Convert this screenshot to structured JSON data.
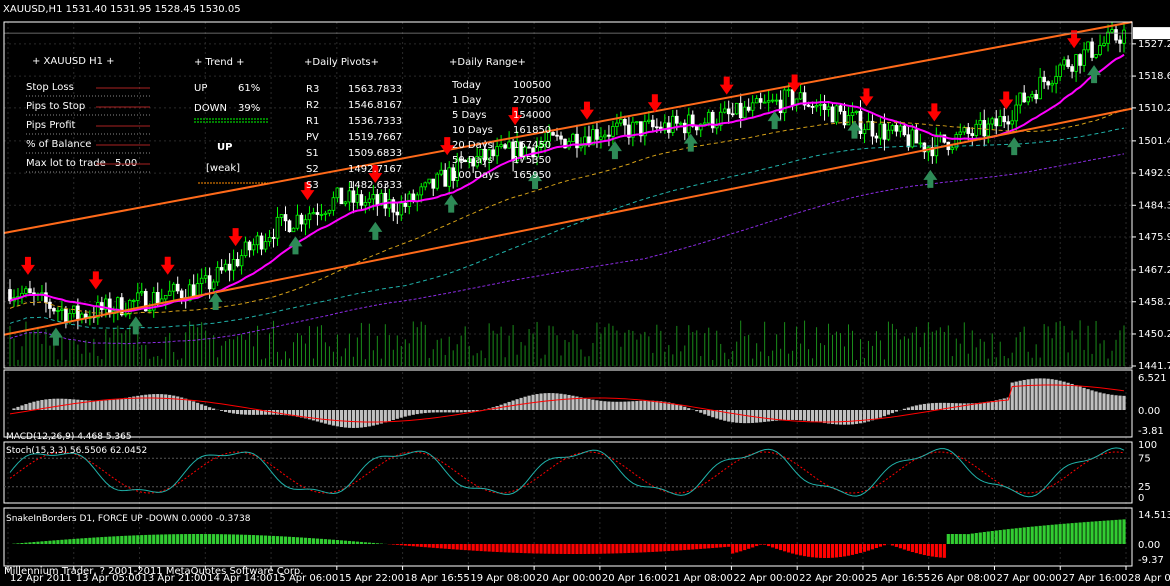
{
  "header": {
    "symbol_line": "XAUUSD,H1  1531.40 1531.95 1528.45 1530.05"
  },
  "price_axis": {
    "current_price": "1530.05",
    "ticks": [
      "1527.20",
      "1518.65",
      "1510.20",
      "1501.45",
      "1492.90",
      "1484.35",
      "1475.95",
      "1467.20",
      "1458.75",
      "1450.20",
      "1441.70"
    ]
  },
  "time_axis": {
    "ticks": [
      "12 Apr 2011",
      "13 Apr 05:00",
      "13 Apr 21:00",
      "14 Apr 14:00",
      "15 Apr 06:00",
      "15 Apr 22:00",
      "18 Apr 16:55",
      "19 Apr 08:00",
      "20 Apr 00:00",
      "20 Apr 16:00",
      "21 Apr 08:00",
      "22 Apr 00:00",
      "22 Apr 20:00",
      "25 Apr 16:55",
      "26 Apr 08:00",
      "27 Apr 00:00",
      "27 Apr 16:00",
      "28 Apr 08:00"
    ]
  },
  "info_panel": {
    "symbol": "XAUUSD  H1",
    "rows": [
      {
        "label": "Stop Loss",
        "value": ""
      },
      {
        "label": "Pips to Stop",
        "value": ""
      },
      {
        "label": "Pips Profit",
        "value": ""
      },
      {
        "label": "% of Balance",
        "value": ""
      },
      {
        "label": "Max lot to trade",
        "value": "5.00"
      }
    ]
  },
  "trend_panel": {
    "title": "Trend",
    "up_label": "UP",
    "up_pct": "61%",
    "down_label": "DOWN",
    "down_pct": "39%",
    "big_signal": "UP",
    "strength": "[weak]"
  },
  "pivots_panel": {
    "title": "Daily Pivots",
    "rows": [
      {
        "label": "R3",
        "value": "1563.7833"
      },
      {
        "label": "R2",
        "value": "1546.8167"
      },
      {
        "label": "R1",
        "value": "1536.7333"
      },
      {
        "label": "PV",
        "value": "1519.7667"
      },
      {
        "label": "S1",
        "value": "1509.6833"
      },
      {
        "label": "S2",
        "value": "1492.7167"
      },
      {
        "label": "S3",
        "value": "1482.6333"
      }
    ]
  },
  "range_panel": {
    "title": "Daily Range",
    "rows": [
      {
        "label": "Today",
        "value": "100500"
      },
      {
        "label": "1 Day",
        "value": "270500"
      },
      {
        "label": "5 Days",
        "value": "154000"
      },
      {
        "label": "10 Days",
        "value": "161850"
      },
      {
        "label": "20 Days",
        "value": "167450"
      },
      {
        "label": "50 Days",
        "value": "175350"
      },
      {
        "label": "100 Days",
        "value": "165950"
      }
    ]
  },
  "macd": {
    "title": "MACD(12,26,9) 4.468 5.365",
    "ticks": [
      "6.521",
      "0.00",
      "-3.81"
    ]
  },
  "stoch": {
    "title": "Stoch(15,3,3) 56.5506 62.0452",
    "ticks": [
      "100",
      "75",
      "25",
      "0"
    ]
  },
  "snake": {
    "title": "SnakeInBorders D1, FORCE UP -DOWN  0.0000 -0.3738",
    "ticks": [
      "14.5131",
      "0.00",
      "-9.37"
    ]
  },
  "copyright": "Millennium Trader, ? 2001-2011 MetaQuotes Software Corp.",
  "colors": {
    "background": "#000000",
    "bull_candle": "#00ff00",
    "bear_candle": "#ffffff",
    "ma_fast": "#ff00ff",
    "channel": "#ff6a1a",
    "down_arrow": "#ff0000",
    "up_arrow": "#2e8b57",
    "macd_hist": "#c0c0c0",
    "macd_signal": "#ff0000",
    "stoch_main": "#20b2aa",
    "stoch_signal": "#ff0000",
    "snake_up": "#32cd32",
    "snake_down": "#ff0000"
  },
  "chart_data": [
    {
      "type": "candlestick",
      "title": "XAUUSD,H1",
      "ylim": [
        1441.7,
        1533.0
      ],
      "x_range": [
        "12 Apr 2011",
        "28 Apr 08:00"
      ],
      "approx_close_path": [
        {
          "x": "12 Apr 2011",
          "y": 1462
        },
        {
          "x": "13 Apr 05:00",
          "y": 1455
        },
        {
          "x": "13 Apr 21:00",
          "y": 1459
        },
        {
          "x": "14 Apr 14:00",
          "y": 1463
        },
        {
          "x": "15 Apr 06:00",
          "y": 1478
        },
        {
          "x": "15 Apr 22:00",
          "y": 1486
        },
        {
          "x": "18 Apr 16:55",
          "y": 1484
        },
        {
          "x": "19 Apr 08:00",
          "y": 1496
        },
        {
          "x": "20 Apr 00:00",
          "y": 1500
        },
        {
          "x": "20 Apr 16:00",
          "y": 1504
        },
        {
          "x": "21 Apr 08:00",
          "y": 1505
        },
        {
          "x": "22 Apr 00:00",
          "y": 1508
        },
        {
          "x": "22 Apr 20:00",
          "y": 1513
        },
        {
          "x": "25 Apr 16:55",
          "y": 1506
        },
        {
          "x": "26 Apr 08:00",
          "y": 1500
        },
        {
          "x": "27 Apr 00:00",
          "y": 1505
        },
        {
          "x": "27 Apr 16:00",
          "y": 1521
        },
        {
          "x": "28 Apr 08:00",
          "y": 1530
        }
      ],
      "down_arrow_count": 16,
      "up_arrow_count": 14
    },
    {
      "type": "bar",
      "title": "MACD(12,26,9) 4.468 5.365",
      "ylim": [
        -3.81,
        6.521
      ]
    },
    {
      "type": "line",
      "title": "Stoch(15,3,3) 56.5506 62.0452",
      "ylim": [
        0,
        100
      ]
    },
    {
      "type": "bar",
      "title": "SnakeInBorders D1, FORCE UP -DOWN  0.0000 -0.3738",
      "ylim": [
        -9.37,
        14.5131
      ]
    }
  ]
}
